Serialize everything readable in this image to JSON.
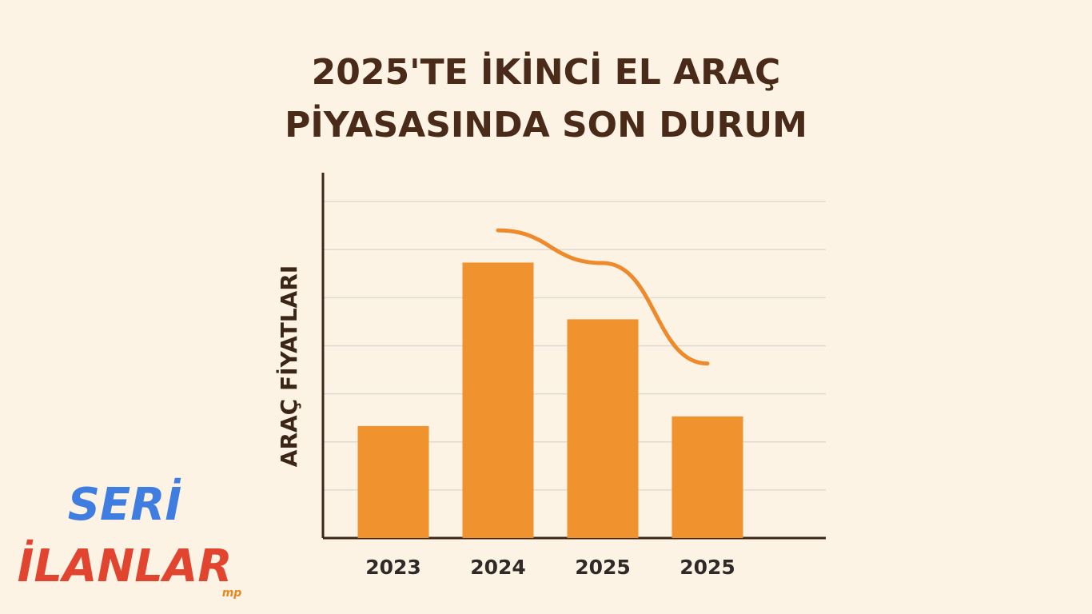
{
  "chart_data": {
    "type": "bar",
    "title": "2025'TE İKİNCİ EL ARAÇ\nPİYASASINDA SON DURUM",
    "y_label": "ARAÇ FİYATLARI",
    "categories": [
      "2023",
      "2024",
      "2025",
      "2025"
    ],
    "series": [
      {
        "type": "bar",
        "color": "#f0922e",
        "values": [
          2.33,
          5.73,
          4.55,
          2.53
        ]
      },
      {
        "type": "line",
        "color": "#ee8a2c",
        "values": [
          null,
          6.4,
          5.72,
          3.63
        ]
      }
    ],
    "ylim": [
      0,
      7.6
    ],
    "yticks": [
      1,
      2,
      3,
      4,
      5,
      6,
      7
    ],
    "grid": true
  },
  "logo": {
    "line1": "SERİ",
    "line2": "İLANLAR",
    "badge": "mp"
  }
}
